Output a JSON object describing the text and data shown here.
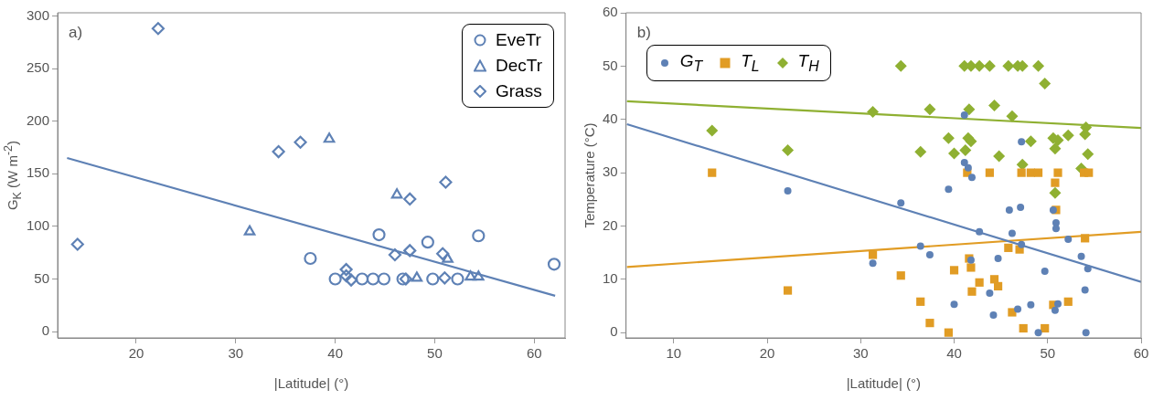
{
  "chart_data": [
    {
      "type": "scatter",
      "ylabel": "G$_{K}$ (W m$^{-2}$)",
      "xlabel": "|Latitude| (°)",
      "annotations": [
        "a)"
      ],
      "xlim": [
        12.1,
        63.1
      ],
      "ylim": [
        -6,
        303
      ],
      "xticks": [
        20,
        30,
        40,
        50,
        60
      ],
      "yticks": [
        0,
        50,
        100,
        150,
        200,
        250,
        300
      ],
      "legend": "top right",
      "series": [
        {
          "name": "EveTr",
          "color": "#5e81b5",
          "marker": "circle",
          "x": [
            37.5,
            44.4,
            54.4,
            49.3,
            62.0,
            40.0,
            42.7,
            43.8,
            44.9,
            46.8,
            49.8,
            52.3
          ],
          "values": [
            69.5,
            92,
            91,
            85,
            64,
            50,
            50,
            50,
            50,
            50,
            50,
            50
          ]
        },
        {
          "name": "DecTr",
          "color": "#5e81b5",
          "marker": "triangle",
          "x": [
            31.4,
            39.4,
            46.2,
            51.3,
            48.2,
            53.6,
            54.4
          ],
          "values": [
            95,
            183,
            130,
            69,
            51,
            52,
            52
          ]
        },
        {
          "name": "Grass",
          "color": "#5e81b5",
          "marker": "diamond",
          "x": [
            14.1,
            22.2,
            34.3,
            36.5,
            51.1,
            47.5,
            46.0,
            47.5,
            50.8,
            41.1,
            41.1,
            41.6,
            47.1,
            51.0
          ],
          "values": [
            83,
            288,
            171,
            180,
            142,
            126,
            73,
            77,
            74,
            59,
            53,
            49,
            50,
            51
          ]
        },
        {
          "type": "line",
          "color": "#5e81b5",
          "marker": "none",
          "x": [
            13.05,
            62.1
          ],
          "values": [
            165,
            34
          ]
        }
      ]
    },
    {
      "type": "scatter",
      "ylabel": "Temperature (°C)",
      "xlabel": "|Latitude| (°)",
      "annotations": [
        "b)"
      ],
      "xlim": [
        4.9,
        60
      ],
      "ylim": [
        -1,
        60
      ],
      "xticks": [
        10,
        20,
        30,
        40,
        50,
        60
      ],
      "yticks": [
        0,
        10,
        20,
        30,
        40,
        50,
        60
      ],
      "legend": "top left",
      "series": [
        {
          "name": "G$_{T}$",
          "color": "#5e81b5",
          "marker": "circle",
          "x": [
            22.2,
            31.3,
            41.1,
            47.2,
            41.1,
            41.5,
            41.9,
            39.4,
            34.3,
            45.9,
            47.1,
            50.6,
            50.9,
            50.9,
            46.2,
            42.7,
            52.2,
            36.4,
            37.4,
            47.2,
            44.7,
            53.6,
            54.3,
            41.8,
            49.7,
            43.8,
            54.0,
            40.0,
            44.2,
            46.8,
            48.2,
            51.1,
            50.8,
            49.0,
            54.1
          ],
          "values": [
            26.6,
            13.0,
            40.8,
            35.8,
            31.9,
            30.9,
            29.1,
            26.9,
            24.3,
            23.0,
            23.5,
            23.0,
            20.6,
            19.5,
            18.6,
            18.9,
            17.5,
            16.2,
            14.6,
            16.5,
            13.9,
            14.3,
            12.0,
            13.6,
            11.5,
            7.4,
            8.0,
            5.3,
            3.3,
            4.4,
            5.2,
            5.4,
            4.2,
            0,
            0
          ]
        },
        {
          "name": "T$_{L}$",
          "color": "#e19c24",
          "marker": "square",
          "x": [
            14.1,
            22.2,
            31.3,
            41.4,
            43.8,
            47.2,
            48.2,
            49.0,
            51.1,
            50.8,
            53.9,
            54.4,
            50.9,
            54.0,
            45.8,
            47.0,
            41.6,
            41.8,
            40.0,
            34.3,
            42.7,
            44.3,
            44.7,
            41.9,
            36.4,
            37.4,
            39.4,
            46.2,
            50.6,
            52.2,
            47.4,
            49.7
          ],
          "values": [
            30,
            7.9,
            14.6,
            30,
            30,
            30,
            30,
            30,
            30,
            28.1,
            30,
            30,
            23.0,
            17.7,
            15.9,
            15.6,
            13.9,
            12.2,
            11.7,
            10.7,
            9.4,
            10.0,
            8.7,
            7.7,
            5.8,
            1.8,
            0,
            3.8,
            5.2,
            5.8,
            0.8,
            0.8
          ]
        },
        {
          "name": "T$_{H}$",
          "color": "#8fb032",
          "marker": "diamond",
          "x": [
            14.1,
            22.2,
            31.3,
            34.3,
            41.1,
            41.8,
            42.7,
            43.8,
            45.8,
            46.8,
            47.3,
            49.0,
            49.7,
            37.4,
            41.6,
            44.3,
            46.2,
            54.1,
            54.0,
            52.2,
            50.6,
            51.1,
            48.2,
            39.4,
            41.5,
            41.8,
            36.4,
            40.0,
            41.2,
            44.8,
            50.8,
            54.3,
            47.3,
            53.6,
            50.8
          ],
          "values": [
            37.9,
            34.2,
            41.4,
            50,
            50,
            50,
            50,
            50,
            50,
            50,
            50,
            50,
            46.7,
            41.9,
            41.9,
            42.6,
            40.6,
            38.5,
            37.2,
            37.0,
            36.5,
            36.1,
            35.9,
            36.5,
            36.5,
            35.9,
            33.9,
            33.6,
            34.2,
            33.1,
            34.5,
            33.5,
            31.5,
            30.8,
            26.2
          ]
        },
        {
          "type": "line",
          "color": "#8fb032",
          "marker": "none",
          "x": [
            5.0,
            60
          ],
          "values": [
            43.4,
            38.4
          ]
        },
        {
          "type": "line",
          "color": "#5e81b5",
          "marker": "none",
          "x": [
            5.0,
            60
          ],
          "values": [
            39.1,
            9.5
          ]
        },
        {
          "type": "line",
          "color": "#e19c24",
          "marker": "none",
          "x": [
            5.0,
            60
          ],
          "values": [
            12.3,
            18.9
          ]
        }
      ]
    }
  ]
}
